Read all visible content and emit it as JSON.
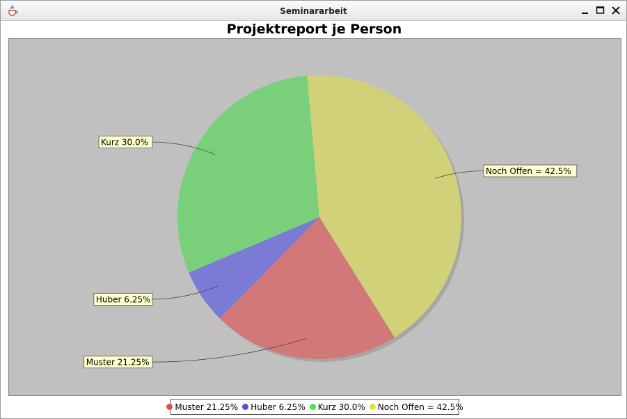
{
  "window": {
    "title": "Seminararbeit"
  },
  "colors": {
    "muster": "#d27878",
    "huber": "#7b7bd5",
    "kurz": "#7ad07a",
    "offen": "#d1d17a"
  },
  "legend_colors": {
    "muster": "#e05050",
    "huber": "#5050e0",
    "kurz": "#50e050",
    "offen": "#e0e040"
  },
  "chart_data": {
    "type": "pie",
    "title": "Projektreport je Person",
    "slices": [
      {
        "key": "offen",
        "name": "Noch Offen",
        "value": 42.5,
        "label": "Noch Offen = 42.5%",
        "legend": "Noch Offen = 42.5%"
      },
      {
        "key": "muster",
        "name": "Muster",
        "value": 21.25,
        "label": "Muster 21.25%",
        "legend": "Muster 21.25%"
      },
      {
        "key": "huber",
        "name": "Huber",
        "value": 6.25,
        "label": "Huber 6.25%",
        "legend": "Huber 6.25%"
      },
      {
        "key": "kurz",
        "name": "Kurz",
        "value": 30.0,
        "label": "Kurz 30.0%",
        "legend": "Kurz 30.0%"
      }
    ],
    "legend_order": [
      "muster",
      "huber",
      "kurz",
      "offen"
    ],
    "legend_position": "bottom"
  }
}
